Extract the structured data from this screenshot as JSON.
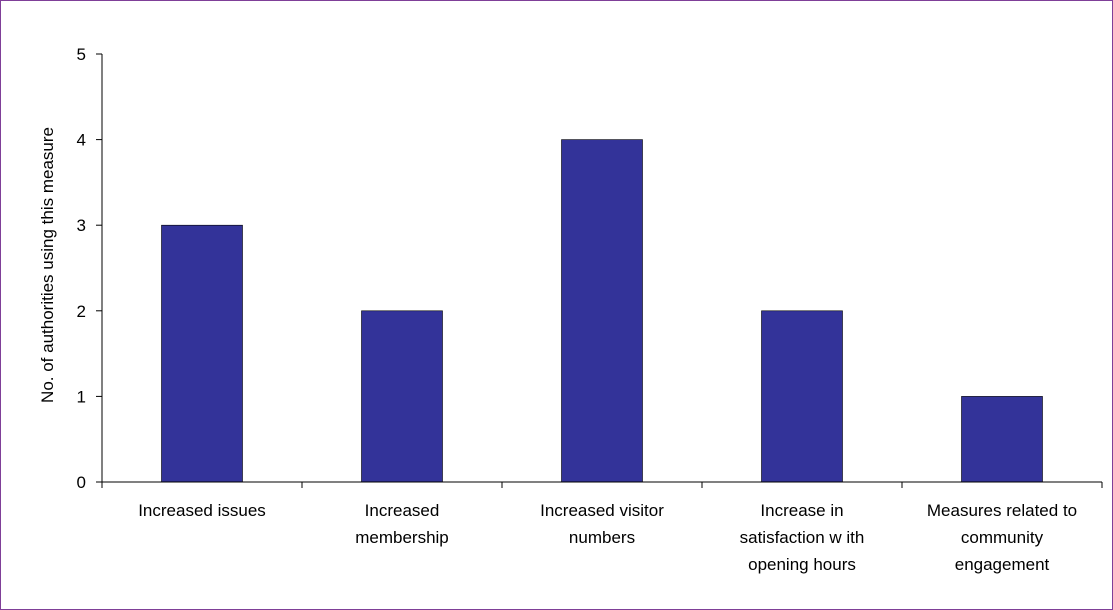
{
  "chart_data": {
    "type": "bar",
    "categories": [
      [
        "Increased issues"
      ],
      [
        "Increased",
        "membership"
      ],
      [
        "Increased visitor",
        "numbers"
      ],
      [
        "Increase in",
        "satisfaction w ith",
        "opening hours"
      ],
      [
        "Measures related to",
        "community",
        "engagement"
      ]
    ],
    "values": [
      3,
      2,
      4,
      2,
      1
    ],
    "ylabel": "No. of authorities using this measure",
    "ylim": [
      0,
      5
    ],
    "yticks": [
      0,
      1,
      2,
      3,
      4,
      5
    ],
    "grid": false,
    "legend": "none",
    "bar_color": "#333399",
    "frame_color": "#7f3f98"
  }
}
